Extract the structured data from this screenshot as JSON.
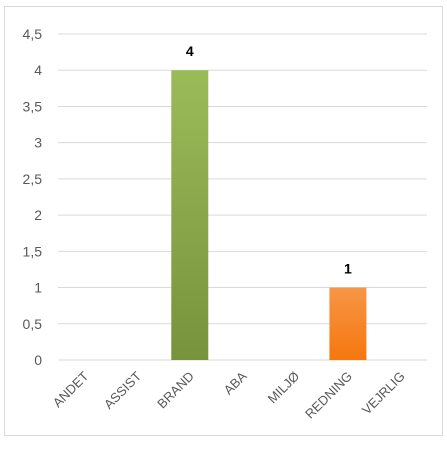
{
  "chart_data": {
    "type": "bar",
    "title": "",
    "xlabel": "",
    "ylabel": "",
    "categories": [
      "ANDET",
      "ASSIST",
      "BRAND",
      "ABA",
      "MILJØ",
      "REDNING",
      "VEJRLIG"
    ],
    "values": [
      0,
      0,
      4,
      0,
      0,
      1,
      0
    ],
    "data_labels": [
      "",
      "",
      "4",
      "",
      "",
      "1",
      ""
    ],
    "bar_colors": [
      "#9bbb59",
      "#9bbb59",
      "#9bbb59",
      "#9bbb59",
      "#9bbb59",
      "#f79646",
      "#9bbb59"
    ],
    "gradient_bottom": {
      "BRAND": "#77933c",
      "REDNING": "#f5770f"
    },
    "ylim": [
      0,
      4.5
    ],
    "yticks": [
      "0",
      "0,5",
      "1",
      "1,5",
      "2",
      "2,5",
      "3",
      "3,5",
      "4",
      "4,5"
    ],
    "ytick_values": [
      0,
      0.5,
      1,
      1.5,
      2,
      2.5,
      3,
      3.5,
      4,
      4.5
    ],
    "grid": true,
    "legend": "none",
    "gridline_color": "#d9d9d9"
  }
}
